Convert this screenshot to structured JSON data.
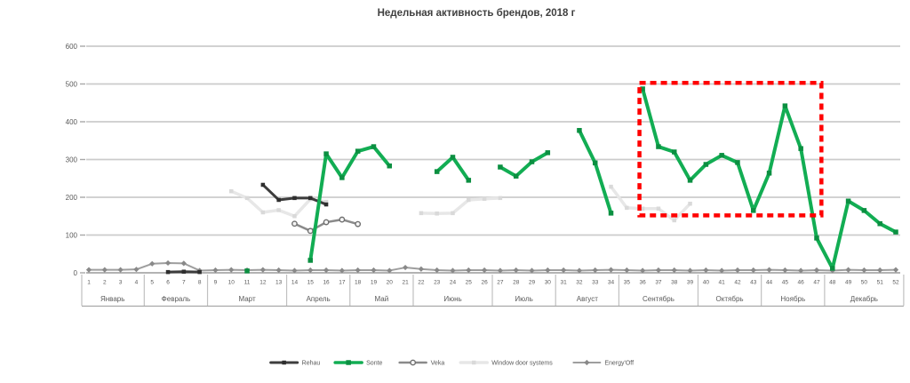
{
  "chart_data": {
    "type": "line",
    "title": "Недельная активность брендов, 2018 г",
    "xlabel": "",
    "ylabel": "",
    "ylim": [
      0,
      600
    ],
    "y_ticks": [
      0,
      100,
      200,
      300,
      400,
      500,
      600
    ],
    "grid": "horizontal",
    "legend_position": "bottom",
    "months": [
      {
        "label": "Январь",
        "weeks": [
          1,
          2,
          3,
          4
        ]
      },
      {
        "label": "Февраль",
        "weeks": [
          5,
          6,
          7,
          8
        ]
      },
      {
        "label": "Март",
        "weeks": [
          9,
          10,
          11,
          12,
          13
        ]
      },
      {
        "label": "Апрель",
        "weeks": [
          14,
          15,
          16,
          17
        ]
      },
      {
        "label": "Май",
        "weeks": [
          18,
          19,
          20,
          21
        ]
      },
      {
        "label": "Июнь",
        "weeks": [
          22,
          23,
          24,
          25,
          26
        ]
      },
      {
        "label": "Июль",
        "weeks": [
          27,
          28,
          29,
          30
        ]
      },
      {
        "label": "Август",
        "weeks": [
          31,
          32,
          33,
          34
        ]
      },
      {
        "label": "Сентябрь",
        "weeks": [
          35,
          36,
          37,
          38,
          39
        ]
      },
      {
        "label": "Октябрь",
        "weeks": [
          40,
          41,
          42,
          43
        ]
      },
      {
        "label": "Ноябрь",
        "weeks": [
          44,
          45,
          46,
          47
        ]
      },
      {
        "label": "Декабрь",
        "weeks": [
          48,
          49,
          50,
          51,
          52
        ]
      }
    ],
    "series": [
      {
        "id": "rehau",
        "label": "Rehau",
        "color": "#3d3d3d",
        "marker_color": "#2e2e2e",
        "marker": "square",
        "marker_size": 4.5,
        "width": 3,
        "values": [
          null,
          null,
          null,
          null,
          null,
          2,
          3,
          2,
          null,
          null,
          null,
          233,
          193,
          198,
          198,
          181,
          null,
          null,
          null,
          null,
          null,
          null,
          null,
          null,
          null,
          null,
          null,
          null,
          null,
          null,
          null,
          null,
          null,
          null,
          null,
          null,
          null,
          null,
          null,
          null,
          null,
          null,
          null,
          null,
          null,
          null,
          null,
          null,
          null,
          null,
          null,
          null
        ]
      },
      {
        "id": "sonte",
        "label": "Sonte",
        "color": "#12ad53",
        "marker_color": "#0b8f41",
        "marker": "square",
        "marker_size": 5.5,
        "width": 4,
        "values": [
          null,
          null,
          null,
          null,
          null,
          null,
          null,
          null,
          null,
          null,
          5,
          null,
          null,
          null,
          33,
          315,
          252,
          322,
          334,
          283,
          null,
          null,
          268,
          306,
          245,
          null,
          280,
          256,
          294,
          318,
          null,
          377,
          291,
          158,
          null,
          487,
          334,
          320,
          245,
          287,
          311,
          292,
          165,
          264,
          442,
          329,
          92,
          12,
          190,
          165,
          130,
          108
        ]
      },
      {
        "id": "veka",
        "label": "Veka",
        "color": "#8a8a8a",
        "marker_color": "#6f6f6f",
        "marker": "circle",
        "marker_size": 5,
        "width": 2.5,
        "values": [
          null,
          null,
          null,
          null,
          null,
          null,
          null,
          null,
          null,
          null,
          null,
          null,
          null,
          130,
          111,
          134,
          141,
          129,
          null,
          null,
          null,
          null,
          null,
          null,
          null,
          null,
          null,
          null,
          null,
          null,
          null,
          null,
          null,
          null,
          null,
          null,
          null,
          null,
          null,
          null,
          null,
          null,
          null,
          null,
          null,
          null,
          null,
          null,
          null,
          null,
          null,
          null
        ]
      },
      {
        "id": "window-door-systems",
        "label": "Window door systems",
        "color": "#e7e7e7",
        "marker_color": "#d9d9d9",
        "marker": "square",
        "marker_size": 4.5,
        "width": 3.5,
        "values": [
          null,
          null,
          null,
          null,
          null,
          null,
          null,
          null,
          null,
          216,
          198,
          160,
          166,
          150,
          195,
          188,
          null,
          null,
          null,
          null,
          null,
          158,
          157,
          158,
          193,
          196,
          198,
          null,
          null,
          null,
          null,
          null,
          null,
          228,
          172,
          170,
          170,
          139,
          183,
          null,
          null,
          null,
          null,
          null,
          null,
          null,
          null,
          null,
          null,
          null,
          null,
          null
        ]
      },
      {
        "id": "energy-off",
        "label": "Energy'Off",
        "color": "#9e9e9e",
        "marker_color": "#898989",
        "marker": "diamond",
        "marker_size": 4.4,
        "width": 2,
        "values": [
          8,
          8,
          8,
          9,
          24,
          26,
          25,
          6,
          7,
          8,
          7,
          8,
          7,
          6,
          7,
          7,
          6,
          7,
          7,
          6,
          14,
          10,
          7,
          6,
          7,
          7,
          6,
          7,
          6,
          7,
          7,
          6,
          7,
          8,
          7,
          6,
          7,
          7,
          6,
          7,
          6,
          7,
          7,
          8,
          7,
          6,
          7,
          6,
          8,
          7,
          7,
          8
        ]
      }
    ],
    "annotation_box": {
      "week_from": 35.8,
      "week_to": 47.3,
      "value_top": 503,
      "value_bottom": 152,
      "color": "#ff0000",
      "style": "dashed"
    }
  }
}
